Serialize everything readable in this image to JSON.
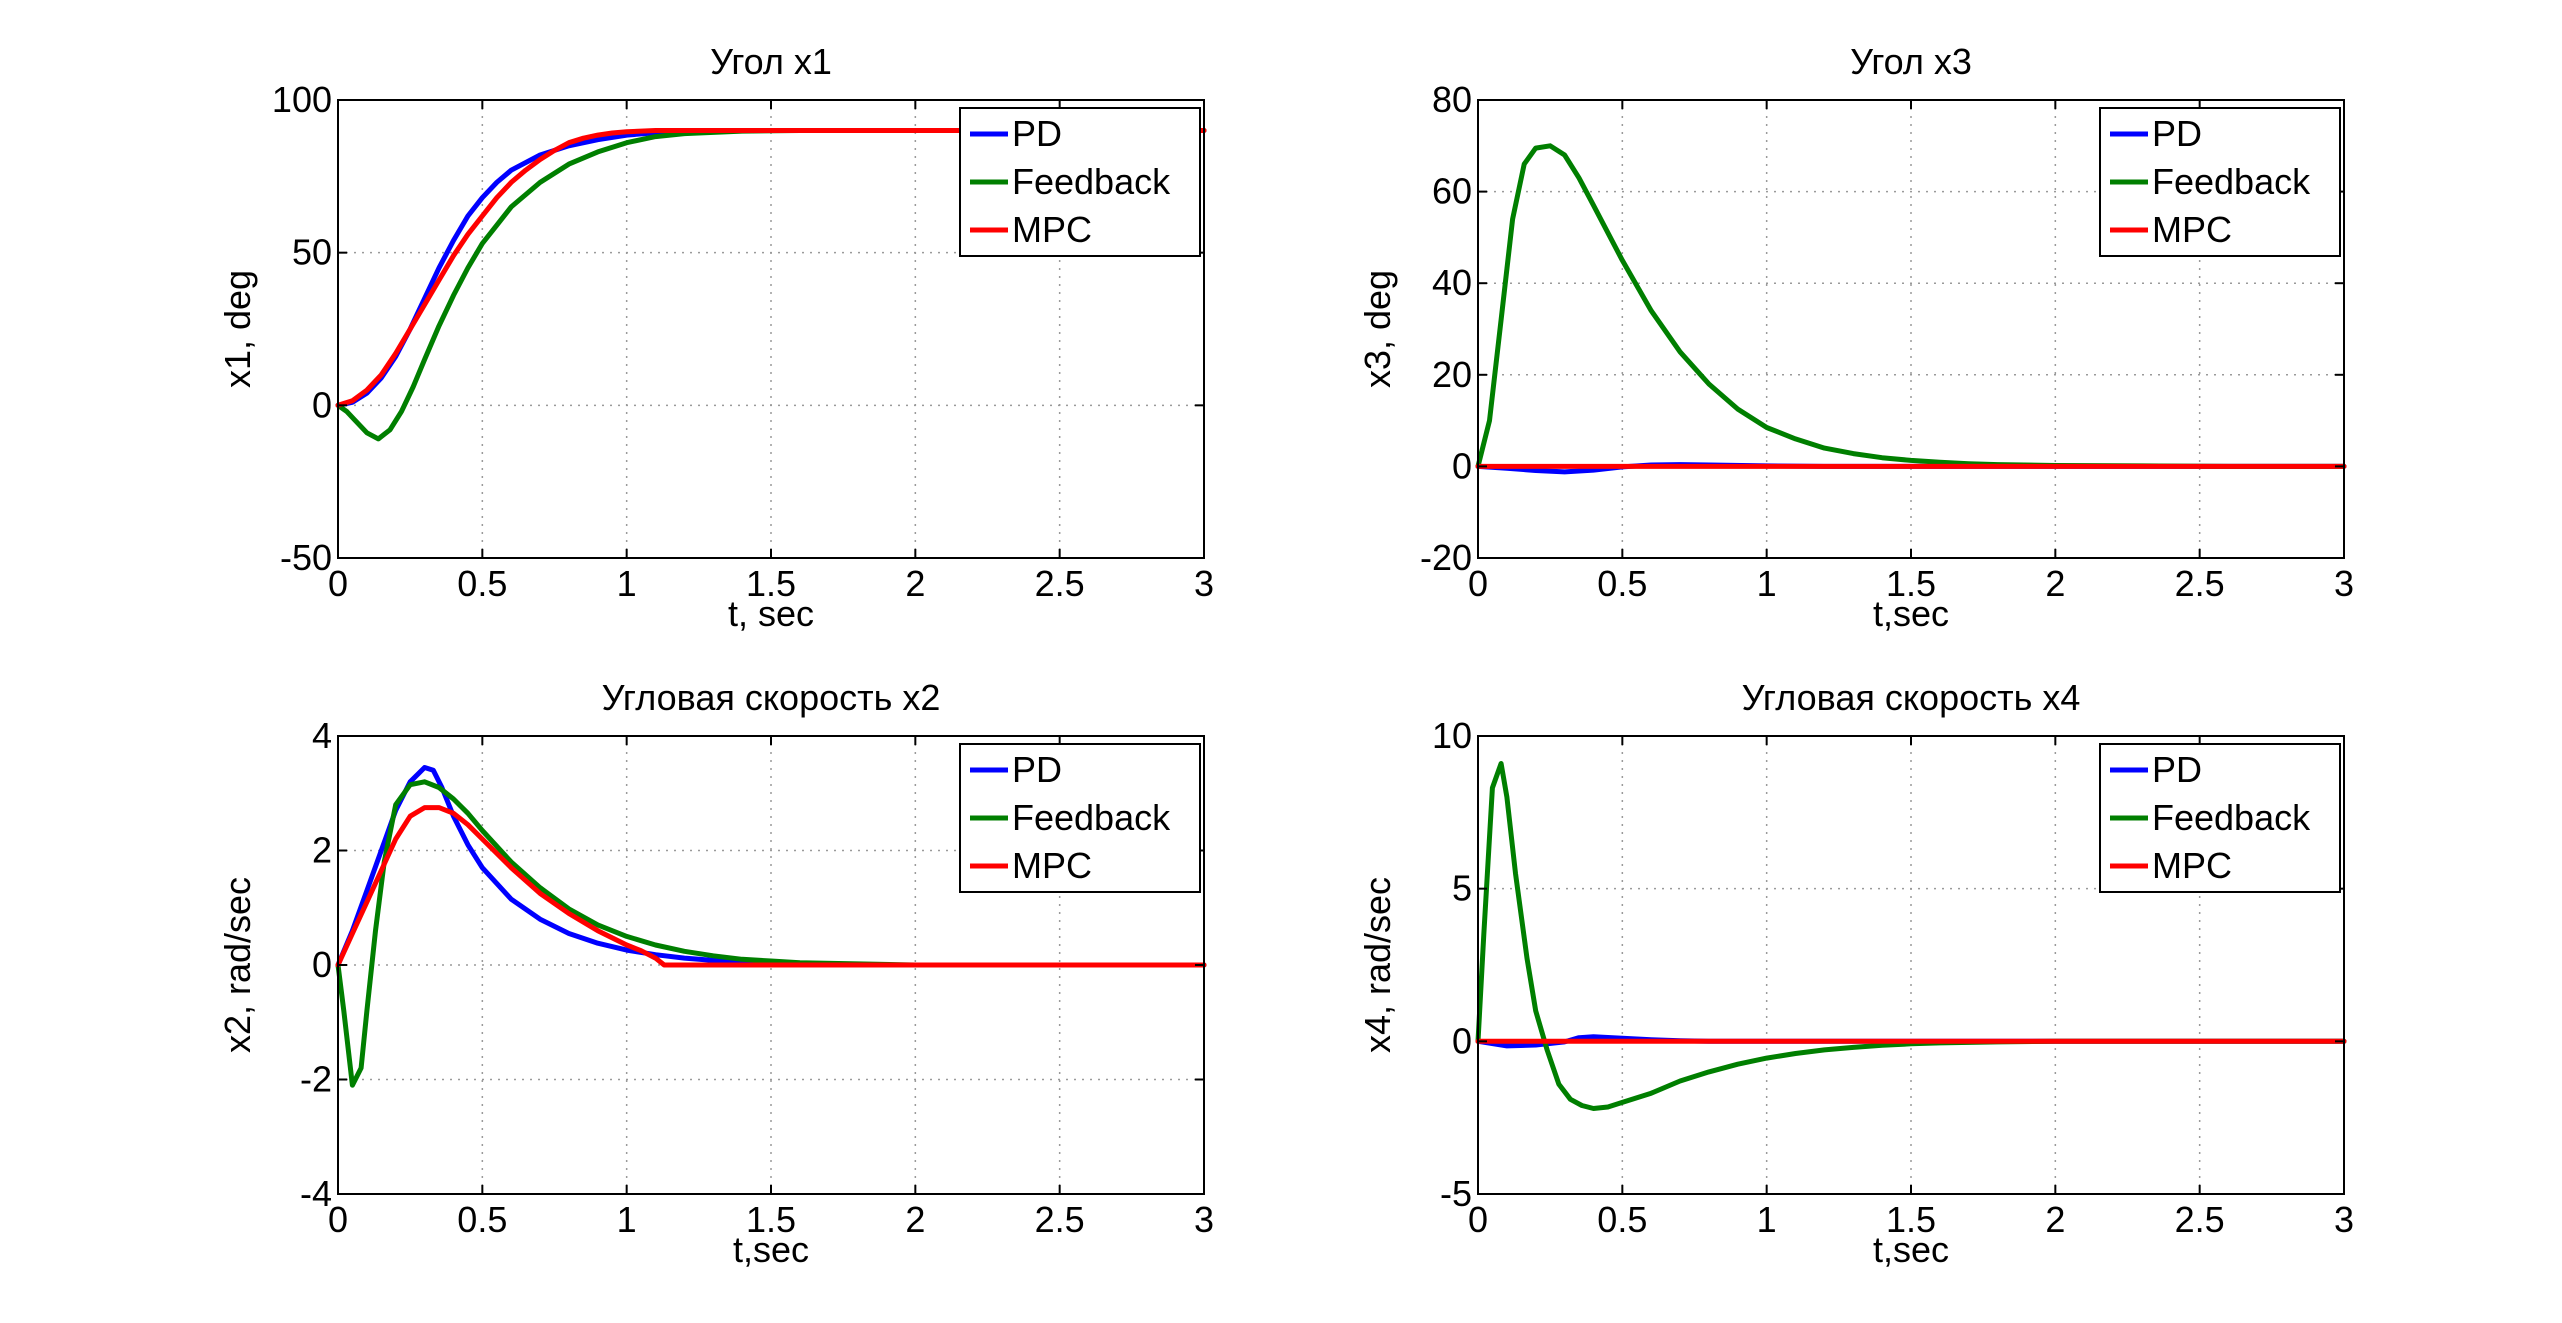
{
  "chart_data": [
    {
      "type": "line",
      "title": "Угол x1",
      "xlabel": "t, sec",
      "ylabel": "x1, deg",
      "xlim": [
        0,
        3
      ],
      "ylim": [
        -50,
        100
      ],
      "xticks": [
        0,
        0.5,
        1,
        1.5,
        2,
        2.5,
        3
      ],
      "xtick_labels": [
        "0",
        "0.5",
        "1",
        "1.5",
        "2",
        "2.5",
        "3"
      ],
      "yticks": [
        -50,
        0,
        50,
        100
      ],
      "ytick_labels": [
        "-50",
        "0",
        "50",
        "100"
      ],
      "grid": true,
      "legend": "top-right",
      "series": [
        {
          "name": "PD",
          "color": "#0000ff",
          "x": [
            0,
            0.05,
            0.1,
            0.15,
            0.2,
            0.25,
            0.3,
            0.35,
            0.4,
            0.45,
            0.5,
            0.55,
            0.6,
            0.7,
            0.8,
            0.9,
            1.0,
            1.1,
            1.2,
            1.4,
            1.6,
            1.8,
            2.0,
            2.5,
            3.0
          ],
          "y": [
            0,
            1,
            4,
            9,
            16,
            25,
            35,
            45,
            54,
            62,
            68,
            73,
            77,
            82,
            85,
            87,
            88.5,
            89.3,
            89.7,
            90,
            90,
            90,
            90,
            90,
            90
          ]
        },
        {
          "name": "Feedback",
          "color": "#007f00",
          "x": [
            0,
            0.03,
            0.06,
            0.1,
            0.14,
            0.18,
            0.22,
            0.26,
            0.3,
            0.35,
            0.4,
            0.45,
            0.5,
            0.55,
            0.6,
            0.7,
            0.8,
            0.9,
            1.0,
            1.1,
            1.2,
            1.4,
            1.6,
            1.8,
            2.0,
            2.5,
            3.0
          ],
          "y": [
            0,
            -2,
            -5,
            -9,
            -11,
            -8,
            -2,
            6,
            15,
            26,
            36,
            45,
            53,
            59,
            65,
            73,
            79,
            83,
            86,
            88,
            89,
            89.8,
            90,
            90,
            90,
            90,
            90
          ]
        },
        {
          "name": "MPC",
          "color": "#ff0000",
          "x": [
            0,
            0.05,
            0.1,
            0.15,
            0.2,
            0.25,
            0.3,
            0.35,
            0.4,
            0.45,
            0.5,
            0.55,
            0.6,
            0.65,
            0.7,
            0.75,
            0.8,
            0.85,
            0.9,
            0.95,
            1.0,
            1.05,
            1.1,
            1.15,
            1.2,
            1.4,
            2.0,
            3.0
          ],
          "y": [
            0,
            1.5,
            5,
            10,
            17,
            25,
            33,
            41,
            49,
            56,
            62,
            68,
            73,
            77,
            80.5,
            83.5,
            86,
            87.5,
            88.5,
            89.2,
            89.6,
            89.8,
            90,
            90,
            90,
            90,
            90,
            90
          ]
        }
      ]
    },
    {
      "type": "line",
      "title": "Угол x3",
      "xlabel": "t,sec",
      "ylabel": "x3, deg",
      "xlim": [
        0,
        3
      ],
      "ylim": [
        -20,
        80
      ],
      "xticks": [
        0,
        0.5,
        1,
        1.5,
        2,
        2.5,
        3
      ],
      "xtick_labels": [
        "0",
        "0.5",
        "1",
        "1.5",
        "2",
        "2.5",
        "3"
      ],
      "yticks": [
        -20,
        0,
        20,
        40,
        60,
        80
      ],
      "ytick_labels": [
        "-20",
        "0",
        "20",
        "40",
        "60",
        "80"
      ],
      "grid": true,
      "legend": "top-right",
      "series": [
        {
          "name": "PD",
          "color": "#0000ff",
          "x": [
            0,
            0.1,
            0.2,
            0.3,
            0.4,
            0.5,
            0.6,
            0.7,
            0.8,
            1.0,
            1.2,
            1.5,
            2.0,
            3.0
          ],
          "y": [
            0,
            -0.4,
            -0.9,
            -1.2,
            -0.8,
            -0.1,
            0.3,
            0.4,
            0.3,
            0.1,
            0,
            0,
            0,
            0
          ]
        },
        {
          "name": "Feedback",
          "color": "#007f00",
          "x": [
            0,
            0.04,
            0.08,
            0.12,
            0.16,
            0.2,
            0.25,
            0.3,
            0.35,
            0.4,
            0.5,
            0.6,
            0.7,
            0.8,
            0.9,
            1.0,
            1.1,
            1.2,
            1.3,
            1.4,
            1.5,
            1.6,
            1.7,
            1.8,
            2.0,
            2.3,
            2.6,
            3.0
          ],
          "y": [
            0,
            10,
            32,
            54,
            66,
            69.5,
            70,
            68,
            63,
            57,
            45,
            34,
            25,
            18,
            12.5,
            8.5,
            6,
            4,
            2.8,
            1.9,
            1.3,
            0.9,
            0.6,
            0.4,
            0.2,
            0.1,
            0,
            0
          ]
        },
        {
          "name": "MPC",
          "color": "#ff0000",
          "x": [
            0,
            0.5,
            1.0,
            1.5,
            2.0,
            2.5,
            3.0
          ],
          "y": [
            0,
            0,
            0,
            0,
            0,
            0,
            0
          ]
        }
      ]
    },
    {
      "type": "line",
      "title": "Угловая скорость x2",
      "xlabel": "t,sec",
      "ylabel": "x2, rad/sec",
      "xlim": [
        0,
        3
      ],
      "ylim": [
        -4,
        4
      ],
      "xticks": [
        0,
        0.5,
        1,
        1.5,
        2,
        2.5,
        3
      ],
      "xtick_labels": [
        "0",
        "0.5",
        "1",
        "1.5",
        "2",
        "2.5",
        "3"
      ],
      "yticks": [
        -4,
        -2,
        0,
        2,
        4
      ],
      "ytick_labels": [
        "-4",
        "-2",
        "0",
        "2",
        "4"
      ],
      "grid": true,
      "legend": "top-right",
      "series": [
        {
          "name": "PD",
          "color": "#0000ff",
          "x": [
            0,
            0.05,
            0.1,
            0.15,
            0.2,
            0.25,
            0.3,
            0.33,
            0.36,
            0.4,
            0.45,
            0.5,
            0.6,
            0.7,
            0.8,
            0.9,
            1.0,
            1.1,
            1.2,
            1.3,
            1.5,
            1.8,
            2.0,
            2.5,
            3.0
          ],
          "y": [
            0,
            0.6,
            1.3,
            2.0,
            2.7,
            3.2,
            3.45,
            3.4,
            3.1,
            2.6,
            2.1,
            1.7,
            1.15,
            0.8,
            0.55,
            0.38,
            0.26,
            0.18,
            0.12,
            0.08,
            0.03,
            0,
            0,
            0,
            0
          ]
        },
        {
          "name": "Feedback",
          "color": "#007f00",
          "x": [
            0,
            0.02,
            0.05,
            0.08,
            0.1,
            0.13,
            0.16,
            0.2,
            0.25,
            0.3,
            0.35,
            0.4,
            0.45,
            0.5,
            0.6,
            0.7,
            0.8,
            0.9,
            1.0,
            1.1,
            1.2,
            1.3,
            1.4,
            1.5,
            1.6,
            1.8,
            2.0,
            2.5,
            3.0
          ],
          "y": [
            0,
            -0.8,
            -2.1,
            -1.8,
            -0.8,
            0.6,
            1.8,
            2.8,
            3.15,
            3.2,
            3.1,
            2.9,
            2.65,
            2.35,
            1.8,
            1.35,
            0.98,
            0.7,
            0.5,
            0.35,
            0.24,
            0.16,
            0.1,
            0.07,
            0.04,
            0.02,
            0,
            0,
            0
          ]
        },
        {
          "name": "MPC",
          "color": "#ff0000",
          "x": [
            0,
            0.05,
            0.1,
            0.15,
            0.2,
            0.25,
            0.3,
            0.35,
            0.4,
            0.45,
            0.5,
            0.6,
            0.7,
            0.8,
            0.9,
            1.0,
            1.05,
            1.1,
            1.13,
            1.2,
            1.5,
            2.0,
            3.0
          ],
          "y": [
            0,
            0.55,
            1.1,
            1.65,
            2.2,
            2.6,
            2.75,
            2.75,
            2.65,
            2.45,
            2.2,
            1.7,
            1.25,
            0.9,
            0.6,
            0.35,
            0.25,
            0.12,
            0,
            0,
            0,
            0,
            0
          ]
        }
      ]
    },
    {
      "type": "line",
      "title": "Угловая скорость x4",
      "xlabel": "t,sec",
      "ylabel": "x4, rad/sec",
      "xlim": [
        0,
        3
      ],
      "ylim": [
        -5,
        10
      ],
      "xticks": [
        0,
        0.5,
        1,
        1.5,
        2,
        2.5,
        3
      ],
      "xtick_labels": [
        "0",
        "0.5",
        "1",
        "1.5",
        "2",
        "2.5",
        "3"
      ],
      "yticks": [
        -5,
        0,
        5,
        10
      ],
      "ytick_labels": [
        "-5",
        "0",
        "5",
        "10"
      ],
      "grid": true,
      "legend": "top-right",
      "series": [
        {
          "name": "PD",
          "color": "#0000ff",
          "x": [
            0,
            0.1,
            0.2,
            0.3,
            0.35,
            0.4,
            0.5,
            0.6,
            0.7,
            0.8,
            1.0,
            1.5,
            2.0,
            3.0
          ],
          "y": [
            0,
            -0.15,
            -0.12,
            -0.02,
            0.12,
            0.15,
            0.1,
            0.05,
            0.02,
            0,
            0,
            0,
            0,
            0
          ]
        },
        {
          "name": "Feedback",
          "color": "#007f00",
          "x": [
            0,
            0.02,
            0.05,
            0.08,
            0.1,
            0.13,
            0.17,
            0.2,
            0.24,
            0.28,
            0.32,
            0.36,
            0.4,
            0.45,
            0.5,
            0.6,
            0.7,
            0.8,
            0.9,
            1.0,
            1.1,
            1.2,
            1.3,
            1.4,
            1.5,
            1.6,
            1.8,
            2.0,
            2.5,
            3.0
          ],
          "y": [
            0,
            3.5,
            8.3,
            9.1,
            8.0,
            5.5,
            2.7,
            1.0,
            -0.3,
            -1.4,
            -1.9,
            -2.1,
            -2.2,
            -2.15,
            -2.0,
            -1.7,
            -1.3,
            -1.0,
            -0.75,
            -0.55,
            -0.4,
            -0.28,
            -0.2,
            -0.13,
            -0.08,
            -0.05,
            -0.02,
            0,
            0,
            0
          ]
        },
        {
          "name": "MPC",
          "color": "#ff0000",
          "x": [
            0,
            0.5,
            1.0,
            1.5,
            2.0,
            2.5,
            3.0
          ],
          "y": [
            0,
            0,
            0,
            0,
            0,
            0,
            0
          ]
        }
      ]
    }
  ]
}
